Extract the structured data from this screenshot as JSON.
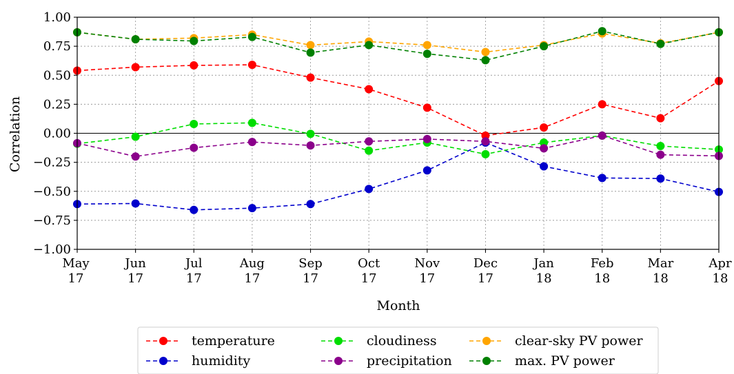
{
  "chart_data": {
    "type": "line",
    "xlabel": "Month",
    "ylabel": "Correlation",
    "ylim": [
      -1.0,
      1.0
    ],
    "yticks": [
      "1.00",
      "0.75",
      "0.50",
      "0.25",
      "0.00",
      "−0.25",
      "−0.50",
      "−0.75",
      "−1.00"
    ],
    "ytick_values": [
      1.0,
      0.75,
      0.5,
      0.25,
      0.0,
      -0.25,
      -0.5,
      -0.75,
      -1.0
    ],
    "categories": [
      [
        "May",
        "17"
      ],
      [
        "Jun",
        "17"
      ],
      [
        "Jul",
        "17"
      ],
      [
        "Aug",
        "17"
      ],
      [
        "Sep",
        "17"
      ],
      [
        "Oct",
        "17"
      ],
      [
        "Nov",
        "17"
      ],
      [
        "Dec",
        "17"
      ],
      [
        "Jan",
        "18"
      ],
      [
        "Feb",
        "18"
      ],
      [
        "Mar",
        "18"
      ],
      [
        "Apr",
        "18"
      ]
    ],
    "grid": true,
    "legend_position": "bottom-center",
    "series": [
      {
        "name": "temperature",
        "color": "#ff0000",
        "values": [
          0.54,
          0.57,
          0.585,
          0.59,
          0.48,
          0.38,
          0.22,
          -0.02,
          0.05,
          0.25,
          0.13,
          0.45
        ]
      },
      {
        "name": "humidity",
        "color": "#0000cc",
        "values": [
          -0.61,
          -0.605,
          -0.66,
          -0.645,
          -0.61,
          -0.48,
          -0.32,
          -0.08,
          -0.285,
          -0.385,
          -0.39,
          -0.505
        ]
      },
      {
        "name": "cloudiness",
        "color": "#00dd00",
        "values": [
          -0.09,
          -0.03,
          0.08,
          0.09,
          -0.005,
          -0.15,
          -0.08,
          -0.18,
          -0.08,
          -0.02,
          -0.11,
          -0.14
        ]
      },
      {
        "name": "precipitation",
        "color": "#8b008b",
        "values": [
          -0.085,
          -0.2,
          -0.125,
          -0.075,
          -0.105,
          -0.07,
          -0.05,
          -0.07,
          -0.13,
          -0.02,
          -0.185,
          -0.195
        ]
      },
      {
        "name": "clear-sky PV power",
        "color": "#ffa500",
        "values": [
          0.87,
          0.81,
          0.82,
          0.85,
          0.76,
          0.79,
          0.76,
          0.7,
          0.76,
          0.86,
          0.775,
          0.87
        ]
      },
      {
        "name": "max. PV power",
        "color": "#008000",
        "values": [
          0.87,
          0.81,
          0.795,
          0.83,
          0.695,
          0.76,
          0.685,
          0.63,
          0.75,
          0.88,
          0.77,
          0.87
        ]
      }
    ]
  }
}
